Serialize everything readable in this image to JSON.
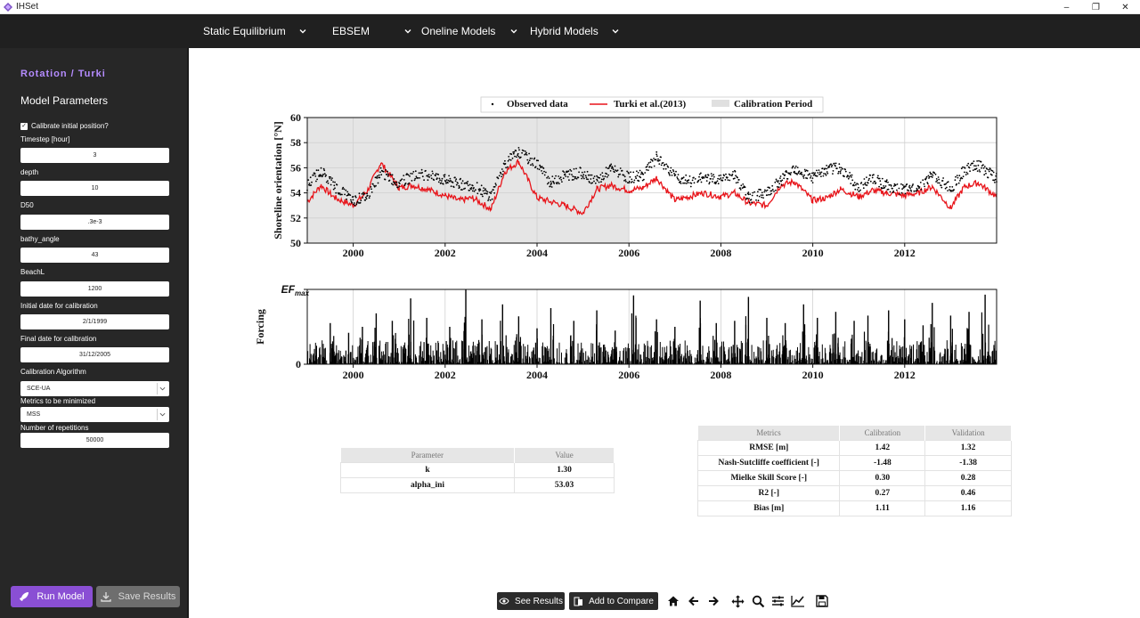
{
  "window": {
    "title": "IHSet",
    "controls": [
      "–",
      "❐",
      "✕"
    ]
  },
  "nav": [
    {
      "label": "Static Equilibrium"
    },
    {
      "label": "EBSEM"
    },
    {
      "label": "Oneline Models"
    },
    {
      "label": "Hybrid Models"
    }
  ],
  "sidebar": {
    "title": "Rotation / Turki",
    "subtitle": "Model Parameters",
    "calibrate_label": "Calibrate initial position?",
    "calibrate_checked": true,
    "fields": [
      {
        "label": "Timestep [hour]",
        "value": "3"
      },
      {
        "label": "depth",
        "value": "10"
      },
      {
        "label": "D50",
        "value": ".3e-3"
      },
      {
        "label": "bathy_angle",
        "value": "43"
      },
      {
        "label": "BeachL",
        "value": "1200"
      },
      {
        "label": "Initial date for calibration",
        "value": "2/1/1999"
      },
      {
        "label": "Final date for calibration",
        "value": "31/12/2005"
      }
    ],
    "algorithm": {
      "label": "Calibration Algorithm",
      "value": "SCE-UA"
    },
    "metric": {
      "label": "Metrics to be minimized",
      "value": "MSS"
    },
    "repetitions": {
      "label": "Number of repetitions",
      "value": "50000"
    },
    "run_label": "Run Model",
    "save_label": "Save Results"
  },
  "chart_data": [
    {
      "type": "line",
      "ylabel": "Shoreline orientation [°N]",
      "ylim": [
        50,
        60
      ],
      "yticks": [
        "50",
        "52",
        "54",
        "56",
        "58",
        "60"
      ],
      "xlim": [
        1999.0,
        2014.0
      ],
      "xticks": [
        "2000",
        "2002",
        "2004",
        "2006",
        "2008",
        "2010",
        "2012"
      ],
      "grid": true,
      "legend_position": "top",
      "calibration_period": [
        1999.0,
        2006.0
      ],
      "series": [
        {
          "name": "Observed data",
          "color": "#000000",
          "style": "dots",
          "x": [
            1999.0,
            1999.3,
            1999.6,
            2000.0,
            2000.3,
            2000.6,
            2001.0,
            2001.3,
            2001.6,
            2002.0,
            2002.3,
            2002.6,
            2003.0,
            2003.3,
            2003.6,
            2004.0,
            2004.3,
            2004.6,
            2005.0,
            2005.3,
            2005.6,
            2006.0,
            2006.3,
            2006.6,
            2007.0,
            2007.3,
            2007.6,
            2008.0,
            2008.3,
            2008.6,
            2009.0,
            2009.3,
            2009.6,
            2010.0,
            2010.3,
            2010.6,
            2011.0,
            2011.3,
            2011.6,
            2012.0,
            2012.3,
            2012.6,
            2013.0,
            2013.3,
            2013.6,
            2014.0
          ],
          "y": [
            54.6,
            55.8,
            54.5,
            53.4,
            53.7,
            55.6,
            54.8,
            55.3,
            55.5,
            55.0,
            54.7,
            54.6,
            53.7,
            56.3,
            57.2,
            56.3,
            54.8,
            55.4,
            55.6,
            54.9,
            55.9,
            55.2,
            55.4,
            56.8,
            55.3,
            54.9,
            55.2,
            55.0,
            55.4,
            53.6,
            54.0,
            55.0,
            56.0,
            55.2,
            55.8,
            56.0,
            54.4,
            55.2,
            54.6,
            54.2,
            54.5,
            55.4,
            54.3,
            55.8,
            56.2,
            55.1
          ]
        },
        {
          "name": "Turki et al.(2013)",
          "color": "#e8141a",
          "style": "line",
          "x": [
            1999.0,
            1999.3,
            1999.6,
            2000.0,
            2000.3,
            2000.6,
            2001.0,
            2001.3,
            2001.6,
            2002.0,
            2002.3,
            2002.6,
            2003.0,
            2003.3,
            2003.6,
            2004.0,
            2004.3,
            2004.6,
            2005.0,
            2005.3,
            2005.6,
            2006.0,
            2006.3,
            2006.6,
            2007.0,
            2007.3,
            2007.6,
            2008.0,
            2008.3,
            2008.6,
            2009.0,
            2009.3,
            2009.6,
            2010.0,
            2010.3,
            2010.6,
            2011.0,
            2011.3,
            2011.6,
            2012.0,
            2012.3,
            2012.6,
            2013.0,
            2013.3,
            2013.6,
            2014.0
          ],
          "y": [
            53.3,
            54.6,
            53.6,
            53.0,
            54.1,
            56.4,
            54.4,
            54.6,
            54.3,
            53.8,
            53.4,
            53.6,
            52.7,
            55.7,
            56.5,
            53.6,
            53.3,
            53.0,
            52.4,
            54.3,
            54.6,
            54.2,
            54.4,
            55.2,
            53.4,
            53.7,
            54.0,
            53.7,
            54.0,
            53.2,
            53.0,
            54.6,
            54.9,
            53.4,
            53.6,
            54.3,
            53.7,
            54.2,
            54.0,
            53.8,
            54.0,
            54.5,
            52.8,
            54.5,
            54.8,
            53.7
          ]
        },
        {
          "name": "Calibration Period",
          "color": "#e5e5e5",
          "style": "area"
        }
      ]
    },
    {
      "type": "bar",
      "ylabel": "Forcing",
      "ytick_top": "EF",
      "ytick_top_sub": "max",
      "ytick_bottom": "0",
      "xlim": [
        1999.0,
        2014.0
      ],
      "xticks": [
        "2000",
        "2002",
        "2004",
        "2006",
        "2008",
        "2010",
        "2012"
      ],
      "grid": true,
      "spikes": [
        {
          "x": 1999.5,
          "v": 0.55
        },
        {
          "x": 1999.9,
          "v": 0.42
        },
        {
          "x": 2000.2,
          "v": 0.5
        },
        {
          "x": 2000.5,
          "v": 0.68
        },
        {
          "x": 2000.85,
          "v": 0.58
        },
        {
          "x": 2001.25,
          "v": 0.88
        },
        {
          "x": 2001.6,
          "v": 0.62
        },
        {
          "x": 2002.1,
          "v": 0.5
        },
        {
          "x": 2002.45,
          "v": 1.0
        },
        {
          "x": 2002.8,
          "v": 0.6
        },
        {
          "x": 2003.25,
          "v": 0.8
        },
        {
          "x": 2003.6,
          "v": 0.64
        },
        {
          "x": 2004.0,
          "v": 0.48
        },
        {
          "x": 2004.3,
          "v": 0.75
        },
        {
          "x": 2004.8,
          "v": 0.58
        },
        {
          "x": 2005.3,
          "v": 0.72
        },
        {
          "x": 2005.7,
          "v": 0.45
        },
        {
          "x": 2006.1,
          "v": 0.92
        },
        {
          "x": 2006.6,
          "v": 0.6
        },
        {
          "x": 2007.0,
          "v": 0.5
        },
        {
          "x": 2007.55,
          "v": 0.85
        },
        {
          "x": 2007.9,
          "v": 0.55
        },
        {
          "x": 2008.3,
          "v": 0.58
        },
        {
          "x": 2008.6,
          "v": 0.9
        },
        {
          "x": 2009.0,
          "v": 0.62
        },
        {
          "x": 2009.4,
          "v": 0.55
        },
        {
          "x": 2009.8,
          "v": 0.8
        },
        {
          "x": 2010.1,
          "v": 0.62
        },
        {
          "x": 2010.5,
          "v": 0.7
        },
        {
          "x": 2010.9,
          "v": 0.58
        },
        {
          "x": 2011.2,
          "v": 0.65
        },
        {
          "x": 2011.65,
          "v": 0.72
        },
        {
          "x": 2012.0,
          "v": 0.6
        },
        {
          "x": 2012.4,
          "v": 0.52
        },
        {
          "x": 2012.6,
          "v": 0.82
        },
        {
          "x": 2013.0,
          "v": 0.65
        },
        {
          "x": 2013.4,
          "v": 0.7
        },
        {
          "x": 2013.75,
          "v": 0.93
        }
      ]
    }
  ],
  "param_table": {
    "headers": [
      "Parameter",
      "Value"
    ],
    "rows": [
      [
        "k",
        "1.30"
      ],
      [
        "alpha_ini",
        "53.03"
      ]
    ]
  },
  "metrics_table": {
    "headers": [
      "Metrics",
      "Calibration",
      "Validation"
    ],
    "rows": [
      [
        "RMSE [m]",
        "1.42",
        "1.32"
      ],
      [
        "Nash-Sutcliffe coefficient [-]",
        "-1.48",
        "-1.38"
      ],
      [
        "Mielke Skill Score [-]",
        "0.30",
        "0.28"
      ],
      [
        "R2 [-]",
        "0.27",
        "0.46"
      ],
      [
        "Bias [m]",
        "1.11",
        "1.16"
      ]
    ]
  },
  "toolbar": {
    "see_results": "See Results",
    "add_compare": "Add to Compare",
    "icons": [
      "home-icon",
      "back-arrow-icon",
      "forward-arrow-icon",
      "pan-icon",
      "zoom-icon",
      "configure-subplots-icon",
      "edit-axis-icon",
      "save-figure-icon"
    ]
  },
  "colors": {
    "accent": "#8a4fd4",
    "sidebar_bg": "#272727",
    "nav_bg": "#202020",
    "title_accent": "#b58cff",
    "model_line": "#e8141a"
  }
}
